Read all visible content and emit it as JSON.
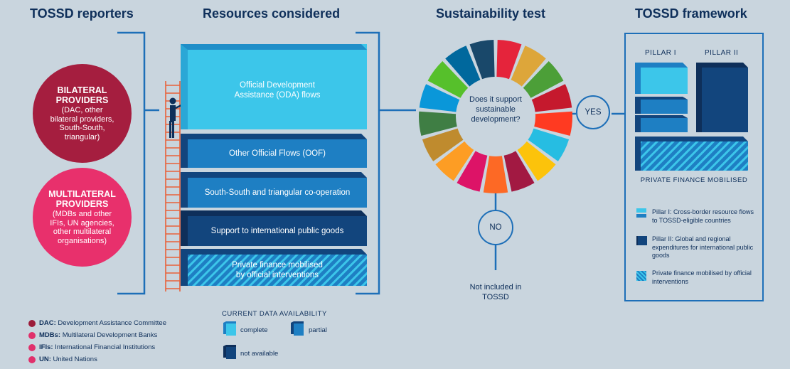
{
  "headings": {
    "reporters": "TOSSD reporters",
    "resources": "Resources considered",
    "test": "Sustainability test",
    "framework": "TOSSD framework"
  },
  "reporters": {
    "bilateral": {
      "title": "BILATERAL PROVIDERS",
      "sub": "(DAC, other bilateral providers, South-South, triangular)"
    },
    "multilateral": {
      "title": "MULTILATERAL PROVIDERS",
      "sub": "(MDBs and other IFIs, UN agencies, other multilateral organisations)"
    }
  },
  "resources": {
    "oda": "Official Development Assistance (ODA) flows",
    "oof": "Other Official Flows (OOF)",
    "ssc": "South-South and triangular co-operation",
    "ipg": "Support to international public goods",
    "pfm": "Private finance mobilised by official interventions"
  },
  "test": {
    "question": "Does it support sustainable development?",
    "yes": "YES",
    "no": "NO",
    "not_included": "Not included in TOSSD"
  },
  "framework": {
    "pillar1": "PILLAR I",
    "pillar2": "PILLAR II",
    "private": "PRIVATE FINANCE MOBILISED",
    "legend": [
      "Pillar I: Cross-border resource flows to TOSSD-eligible countries",
      "Pillar II: Global and regional expenditures for international public goods",
      "Private finance mobilised by official interventions"
    ]
  },
  "abbreviations": [
    {
      "abbr": "DAC:",
      "text": " Development Assistance Committee",
      "color": "#9b1c3a"
    },
    {
      "abbr": "MDBs:",
      "text": " Multilateral Development Banks",
      "color": "#e0306b"
    },
    {
      "abbr": "IFIs:",
      "text": " International Financial Institutions",
      "color": "#e0306b"
    },
    {
      "abbr": "UN:",
      "text": " United Nations",
      "color": "#e0306b"
    }
  ],
  "availability": {
    "title": "CURRENT DATA AVAILABILITY",
    "complete": "complete",
    "partial": "partial",
    "not_available": "not available"
  },
  "colors": {
    "background": "#c9d5de",
    "navy": "#0e2f5a",
    "line_blue": "#1d6fb8",
    "bilateral": "#a51e3f",
    "multilateral": "#e8306c",
    "complete": "#3cc6ea",
    "partial": "#1e7fc3",
    "not_available": "#12457d"
  },
  "sdg_colors": [
    "#e5243b",
    "#dda63a",
    "#4c9f38",
    "#c5192d",
    "#ff3a21",
    "#26bde2",
    "#fcc30b",
    "#a21942",
    "#fd6925",
    "#dd1367",
    "#fd9d24",
    "#bf8b2e",
    "#3f7e44",
    "#0a97d9",
    "#56c02b",
    "#00689d",
    "#19486a"
  ]
}
